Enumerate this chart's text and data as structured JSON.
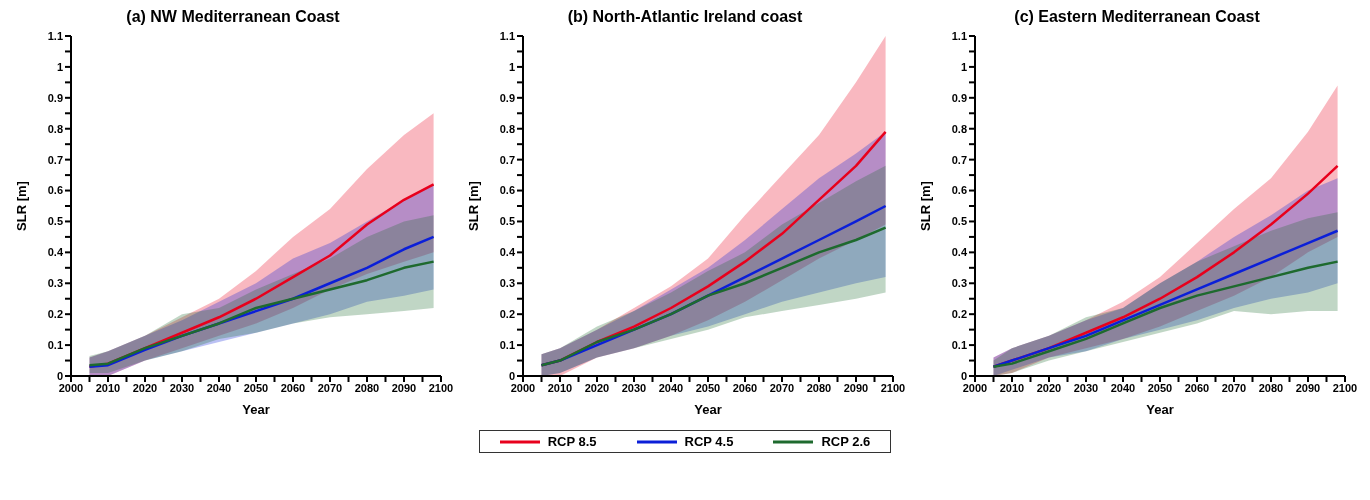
{
  "chart_data": [
    {
      "type": "line",
      "title": "(a) NW Mediterranean Coast",
      "xlabel": "Year",
      "ylabel": "SLR [m]",
      "x": [
        2005,
        2010,
        2020,
        2030,
        2040,
        2050,
        2060,
        2070,
        2080,
        2090,
        2098
      ],
      "xlim": [
        2000,
        2100
      ],
      "xticks": [
        2000,
        {
          "value": 2005,
          "label": null
        },
        2010,
        {
          "value": 2015,
          "label": null
        },
        2020,
        {
          "value": 2025,
          "label": null
        },
        2030,
        {
          "value": 2035,
          "label": null
        },
        2040,
        {
          "value": 2045,
          "label": null
        },
        2050,
        {
          "value": 2055,
          "label": null
        },
        2060,
        {
          "value": 2065,
          "label": null
        },
        2070,
        {
          "value": 2075,
          "label": null
        },
        2080,
        {
          "value": 2085,
          "label": null
        },
        2090,
        {
          "value": 2095,
          "label": null
        },
        2100
      ],
      "ylim": [
        0,
        1.1
      ],
      "yticks": [
        0,
        {
          "value": 0.05,
          "label": null
        },
        0.1,
        {
          "value": 0.15,
          "label": null
        },
        0.2,
        {
          "value": 0.25,
          "label": null
        },
        0.3,
        {
          "value": 0.35,
          "label": null
        },
        0.4,
        {
          "value": 0.45,
          "label": null
        },
        0.5,
        {
          "value": 0.55,
          "label": null
        },
        0.6,
        {
          "value": 0.65,
          "label": null
        },
        0.7,
        {
          "value": 0.75,
          "label": null
        },
        0.8,
        {
          "value": 0.85,
          "label": null
        },
        0.9,
        {
          "value": 0.95,
          "label": null
        },
        1,
        {
          "value": 1.05,
          "label": null
        },
        1.1
      ],
      "series": [
        {
          "color": "#e8001c",
          "values": [
            0.03,
            0.04,
            0.09,
            0.14,
            0.19,
            0.25,
            0.32,
            0.39,
            0.49,
            0.57,
            0.62
          ],
          "lower": [
            0.0,
            0.0,
            0.05,
            0.09,
            0.13,
            0.17,
            0.22,
            0.28,
            0.33,
            0.37,
            0.4
          ],
          "upper": [
            0.06,
            0.08,
            0.13,
            0.19,
            0.25,
            0.34,
            0.45,
            0.54,
            0.67,
            0.78,
            0.85
          ]
        },
        {
          "color": "#0b1fd8",
          "values": [
            0.03,
            0.035,
            0.085,
            0.13,
            0.17,
            0.21,
            0.25,
            0.3,
            0.35,
            0.41,
            0.45
          ],
          "lower": [
            0.0,
            0.0,
            0.05,
            0.08,
            0.11,
            0.14,
            0.17,
            0.2,
            0.24,
            0.26,
            0.28
          ],
          "upper": [
            0.06,
            0.08,
            0.13,
            0.18,
            0.24,
            0.3,
            0.38,
            0.43,
            0.5,
            0.57,
            0.62
          ]
        },
        {
          "color": "#1e6a2e",
          "values": [
            0.035,
            0.04,
            0.09,
            0.13,
            0.17,
            0.22,
            0.25,
            0.28,
            0.31,
            0.35,
            0.37
          ],
          "lower": [
            0.01,
            0.01,
            0.05,
            0.08,
            0.12,
            0.14,
            0.17,
            0.19,
            0.2,
            0.21,
            0.22
          ],
          "upper": [
            0.065,
            0.08,
            0.13,
            0.2,
            0.22,
            0.28,
            0.33,
            0.38,
            0.45,
            0.5,
            0.52
          ]
        }
      ]
    },
    {
      "type": "line",
      "title": "(b) North-Atlantic Ireland coast",
      "xlabel": "Year",
      "ylabel": "SLR [m]",
      "legend": "bottom",
      "x": [
        2005,
        2010,
        2020,
        2030,
        2040,
        2050,
        2060,
        2070,
        2080,
        2090,
        2098
      ],
      "xlim": [
        2000,
        2100
      ],
      "xticks": [
        2000,
        {
          "value": 2005,
          "label": null
        },
        2010,
        {
          "value": 2015,
          "label": null
        },
        2020,
        {
          "value": 2025,
          "label": null
        },
        2030,
        {
          "value": 2035,
          "label": null
        },
        2040,
        {
          "value": 2045,
          "label": null
        },
        2050,
        {
          "value": 2055,
          "label": null
        },
        2060,
        {
          "value": 2065,
          "label": null
        },
        2070,
        {
          "value": 2075,
          "label": null
        },
        2080,
        {
          "value": 2085,
          "label": null
        },
        2090,
        {
          "value": 2095,
          "label": null
        },
        2100
      ],
      "ylim": [
        0,
        1.1
      ],
      "yticks": [
        0,
        {
          "value": 0.05,
          "label": null
        },
        0.1,
        {
          "value": 0.15,
          "label": null
        },
        0.2,
        {
          "value": 0.25,
          "label": null
        },
        0.3,
        {
          "value": 0.35,
          "label": null
        },
        0.4,
        {
          "value": 0.45,
          "label": null
        },
        0.5,
        {
          "value": 0.55,
          "label": null
        },
        0.6,
        {
          "value": 0.65,
          "label": null
        },
        0.7,
        {
          "value": 0.75,
          "label": null
        },
        0.8,
        {
          "value": 0.85,
          "label": null
        },
        0.9,
        {
          "value": 0.95,
          "label": null
        },
        1,
        {
          "value": 1.05,
          "label": null
        },
        1.1
      ],
      "series": [
        {
          "name": "RCP 8.5",
          "color": "#e8001c",
          "values": [
            0.035,
            0.05,
            0.11,
            0.16,
            0.22,
            0.29,
            0.37,
            0.46,
            0.57,
            0.68,
            0.79
          ],
          "lower": [
            0.0,
            0.0,
            0.06,
            0.09,
            0.13,
            0.18,
            0.24,
            0.31,
            0.38,
            0.44,
            0.49
          ],
          "upper": [
            0.07,
            0.09,
            0.15,
            0.22,
            0.29,
            0.38,
            0.52,
            0.65,
            0.78,
            0.95,
            1.1
          ]
        },
        {
          "name": "RCP 4.5",
          "color": "#0b1fd8",
          "values": [
            0.035,
            0.05,
            0.1,
            0.15,
            0.2,
            0.26,
            0.32,
            0.38,
            0.44,
            0.5,
            0.55
          ],
          "lower": [
            0.0,
            0.01,
            0.06,
            0.09,
            0.13,
            0.16,
            0.2,
            0.24,
            0.27,
            0.3,
            0.32
          ],
          "upper": [
            0.07,
            0.09,
            0.15,
            0.21,
            0.28,
            0.35,
            0.44,
            0.54,
            0.64,
            0.72,
            0.79
          ]
        },
        {
          "name": "RCP 2.6",
          "color": "#1e6a2e",
          "values": [
            0.035,
            0.05,
            0.11,
            0.15,
            0.2,
            0.26,
            0.3,
            0.35,
            0.4,
            0.44,
            0.48
          ],
          "lower": [
            0.0,
            0.01,
            0.06,
            0.09,
            0.12,
            0.15,
            0.19,
            0.21,
            0.23,
            0.25,
            0.27
          ],
          "upper": [
            0.07,
            0.09,
            0.16,
            0.21,
            0.27,
            0.34,
            0.4,
            0.49,
            0.56,
            0.63,
            0.68
          ]
        }
      ]
    },
    {
      "type": "line",
      "title": "(c) Eastern Mediterranean Coast",
      "xlabel": "Year",
      "ylabel": "SLR [m]",
      "x": [
        2005,
        2010,
        2020,
        2030,
        2040,
        2050,
        2060,
        2070,
        2080,
        2090,
        2098
      ],
      "xlim": [
        2000,
        2100
      ],
      "xticks": [
        2000,
        {
          "value": 2005,
          "label": null
        },
        2010,
        {
          "value": 2015,
          "label": null
        },
        2020,
        {
          "value": 2025,
          "label": null
        },
        2030,
        {
          "value": 2035,
          "label": null
        },
        2040,
        {
          "value": 2045,
          "label": null
        },
        2050,
        {
          "value": 2055,
          "label": null
        },
        2060,
        {
          "value": 2065,
          "label": null
        },
        2070,
        {
          "value": 2075,
          "label": null
        },
        2080,
        {
          "value": 2085,
          "label": null
        },
        2090,
        {
          "value": 2095,
          "label": null
        },
        2100
      ],
      "ylim": [
        0,
        1.1
      ],
      "yticks": [
        0,
        {
          "value": 0.05,
          "label": null
        },
        0.1,
        {
          "value": 0.15,
          "label": null
        },
        0.2,
        {
          "value": 0.25,
          "label": null
        },
        0.3,
        {
          "value": 0.35,
          "label": null
        },
        0.4,
        {
          "value": 0.45,
          "label": null
        },
        0.5,
        {
          "value": 0.55,
          "label": null
        },
        0.6,
        {
          "value": 0.65,
          "label": null
        },
        0.7,
        {
          "value": 0.75,
          "label": null
        },
        0.8,
        {
          "value": 0.85,
          "label": null
        },
        0.9,
        {
          "value": 0.95,
          "label": null
        },
        1,
        {
          "value": 1.05,
          "label": null
        },
        1.1
      ],
      "series": [
        {
          "color": "#e8001c",
          "values": [
            0.03,
            0.05,
            0.09,
            0.14,
            0.19,
            0.25,
            0.32,
            0.4,
            0.49,
            0.59,
            0.68
          ],
          "lower": [
            0.0,
            0.01,
            0.06,
            0.09,
            0.12,
            0.16,
            0.21,
            0.26,
            0.32,
            0.4,
            0.45
          ],
          "upper": [
            0.06,
            0.09,
            0.13,
            0.18,
            0.24,
            0.32,
            0.43,
            0.54,
            0.64,
            0.79,
            0.94
          ]
        },
        {
          "color": "#0b1fd8",
          "values": [
            0.03,
            0.05,
            0.09,
            0.13,
            0.18,
            0.23,
            0.28,
            0.33,
            0.38,
            0.43,
            0.47
          ],
          "lower": [
            0.0,
            0.02,
            0.06,
            0.08,
            0.12,
            0.15,
            0.18,
            0.22,
            0.25,
            0.27,
            0.3
          ],
          "upper": [
            0.06,
            0.09,
            0.13,
            0.18,
            0.22,
            0.3,
            0.37,
            0.45,
            0.52,
            0.6,
            0.64
          ]
        },
        {
          "color": "#1e6a2e",
          "values": [
            0.03,
            0.04,
            0.08,
            0.12,
            0.17,
            0.22,
            0.26,
            0.29,
            0.32,
            0.35,
            0.37
          ],
          "lower": [
            0.0,
            0.01,
            0.05,
            0.08,
            0.11,
            0.14,
            0.17,
            0.21,
            0.2,
            0.21,
            0.21
          ],
          "upper": [
            0.05,
            0.09,
            0.13,
            0.19,
            0.22,
            0.3,
            0.37,
            0.42,
            0.47,
            0.51,
            0.53
          ]
        }
      ]
    }
  ]
}
